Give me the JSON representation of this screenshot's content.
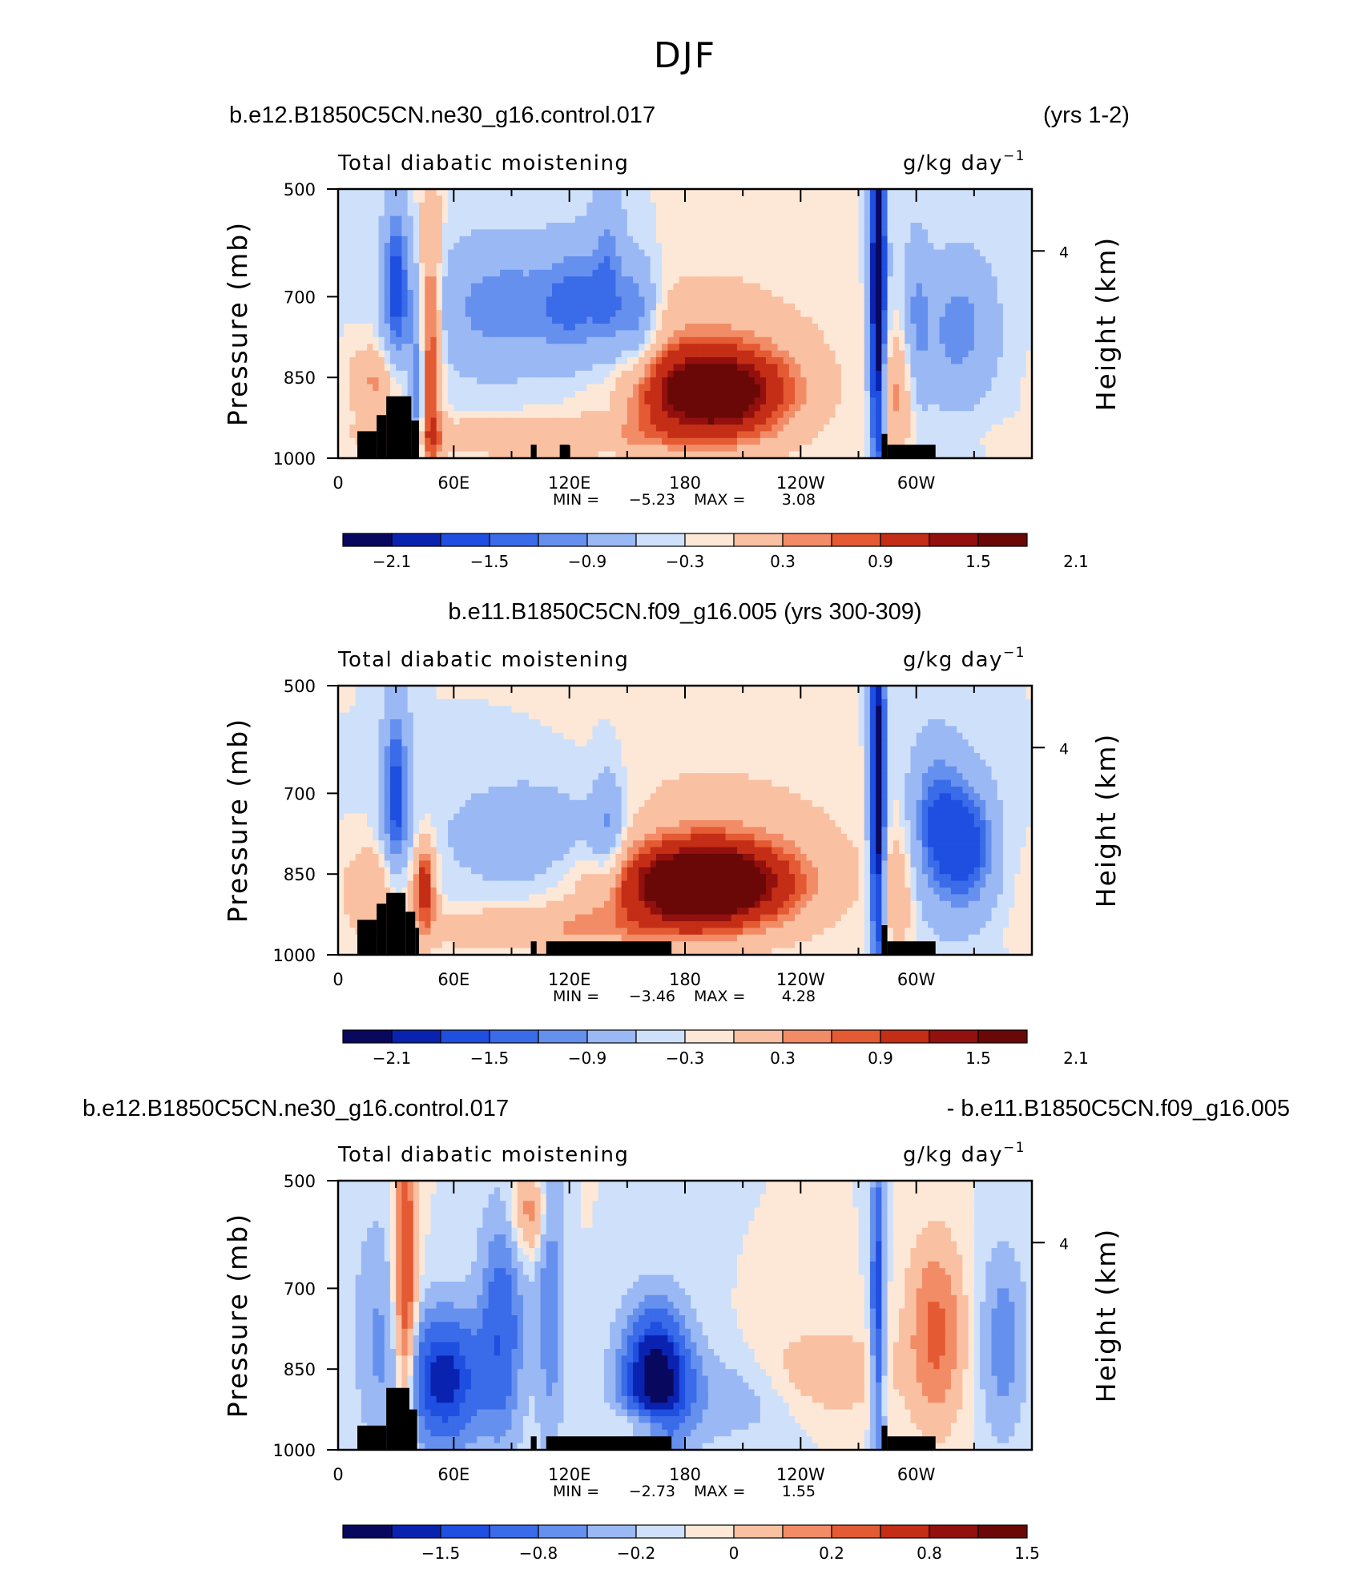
{
  "figure": {
    "title": "DJF",
    "colors": {
      "palette": [
        "#08085f",
        "#0a22b0",
        "#1f4fe0",
        "#3a6be8",
        "#6690ee",
        "#9ab8f4",
        "#cfe1fa",
        "#fde8d8",
        "#f9c0a2",
        "#f28c67",
        "#e45a32",
        "#c42d16",
        "#92100d",
        "#6a0808"
      ],
      "land": "#000000"
    }
  },
  "panels": [
    {
      "header_left": "b.e12.B1850C5CN.ne30_g16.control.017",
      "header_right": "(yrs 1-2)",
      "header_center": "",
      "left_string": "Total diabatic moistening",
      "units": "g/kg day",
      "units_exp": "−1",
      "min_label": "MIN =",
      "min_value": "−5.23",
      "max_label": "MAX =",
      "max_value": "3.08",
      "colorbar_labels": [
        "−2.1",
        "−1.5",
        "−0.9",
        "−0.3",
        "0.3",
        "0.9",
        "1.5",
        "2.1"
      ]
    },
    {
      "header_left": "",
      "header_right": "",
      "header_center": "b.e11.B1850C5CN.f09_g16.005 (yrs 300-309)",
      "left_string": "Total diabatic moistening",
      "units": "g/kg day",
      "units_exp": "−1",
      "min_label": "MIN =",
      "min_value": "−3.46",
      "max_label": "MAX =",
      "max_value": "4.28",
      "colorbar_labels": [
        "−2.1",
        "−1.5",
        "−0.9",
        "−0.3",
        "0.3",
        "0.9",
        "1.5",
        "2.1"
      ]
    },
    {
      "header_left": "b.e12.B1850C5CN.ne30_g16.control.017",
      "header_right": "- b.e11.B1850C5CN.f09_g16.005",
      "header_center": "",
      "left_string": "Total diabatic moistening",
      "units": "g/kg day",
      "units_exp": "−1",
      "min_label": "MIN =",
      "min_value": "−2.73",
      "max_label": "MAX =",
      "max_value": "1.55",
      "colorbar_labels": [
        "−1.5",
        "−0.8",
        "−0.2",
        "0",
        "0.2",
        "0.8",
        "1.5"
      ]
    }
  ],
  "chart_data": [
    {
      "type": "heatmap",
      "title": "Total diabatic moistening",
      "xlabel": "",
      "ylabel": "Pressure (mb)",
      "y2label": "Height (km)",
      "xlim": [
        0,
        360
      ],
      "ylim": [
        1000,
        500
      ],
      "x_ticks": [
        "0",
        "60E",
        "120E",
        "180",
        "120W",
        "60W"
      ],
      "y_ticks": [
        "500",
        "700",
        "850",
        "1000"
      ],
      "y2_ticks": [
        "4"
      ],
      "contour_levels": [
        -2.4,
        -2.1,
        -1.8,
        -1.5,
        -1.2,
        -0.9,
        -0.6,
        -0.3,
        0,
        0.3,
        0.6,
        0.9,
        1.2,
        1.5,
        1.8,
        2.1,
        2.4
      ],
      "min": -5.23,
      "max": 3.08,
      "features": [
        {
          "kind": "max",
          "lon": 195,
          "p": 880,
          "value": 2.6
        },
        {
          "kind": "min",
          "lon": 280,
          "p": 700,
          "value": -5.23
        },
        {
          "kind": "min",
          "lon": 30,
          "p": 700,
          "value": -1.5
        },
        {
          "kind": "min",
          "lon": 90,
          "p": 720,
          "value": -1.3
        },
        {
          "kind": "min",
          "lon": 325,
          "p": 760,
          "value": -1.0
        }
      ]
    },
    {
      "type": "heatmap",
      "title": "Total diabatic moistening",
      "xlabel": "",
      "ylabel": "Pressure (mb)",
      "y2label": "Height (km)",
      "xlim": [
        0,
        360
      ],
      "ylim": [
        1000,
        500
      ],
      "x_ticks": [
        "0",
        "60E",
        "120E",
        "180",
        "120W",
        "60W"
      ],
      "y_ticks": [
        "500",
        "700",
        "850",
        "1000"
      ],
      "y2_ticks": [
        "4"
      ],
      "contour_levels": [
        -2.4,
        -2.1,
        -1.8,
        -1.5,
        -1.2,
        -0.9,
        -0.6,
        -0.3,
        0,
        0.3,
        0.6,
        0.9,
        1.2,
        1.5,
        1.8,
        2.1,
        2.4
      ],
      "min": -3.46,
      "max": 4.28,
      "features": [
        {
          "kind": "max",
          "lon": 190,
          "p": 870,
          "value": 4.28
        },
        {
          "kind": "min",
          "lon": 280,
          "p": 700,
          "value": -3.46
        },
        {
          "kind": "min",
          "lon": 30,
          "p": 700,
          "value": -1.6
        },
        {
          "kind": "min",
          "lon": 325,
          "p": 780,
          "value": -1.2
        }
      ]
    },
    {
      "type": "heatmap",
      "title": "Total diabatic moistening",
      "xlabel": "",
      "ylabel": "Pressure (mb)",
      "y2label": "Height (km)",
      "xlim": [
        0,
        360
      ],
      "ylim": [
        1000,
        500
      ],
      "x_ticks": [
        "0",
        "60E",
        "120E",
        "180",
        "120W",
        "60W"
      ],
      "y_ticks": [
        "500",
        "700",
        "850",
        "1000"
      ],
      "y2_ticks": [
        "4"
      ],
      "contour_levels": [
        -2.0,
        -1.5,
        -1.2,
        -0.8,
        -0.5,
        -0.2,
        0,
        0.2,
        0.5,
        0.8,
        1.2,
        1.5,
        2.0
      ],
      "min": -2.73,
      "max": 1.55,
      "features": [
        {
          "kind": "min",
          "lon": 165,
          "p": 870,
          "value": -2.73
        },
        {
          "kind": "min",
          "lon": 55,
          "p": 870,
          "value": -2.0
        },
        {
          "kind": "max",
          "lon": 35,
          "p": 700,
          "value": 1.3
        },
        {
          "kind": "max",
          "lon": 310,
          "p": 780,
          "value": 1.0
        }
      ]
    }
  ]
}
